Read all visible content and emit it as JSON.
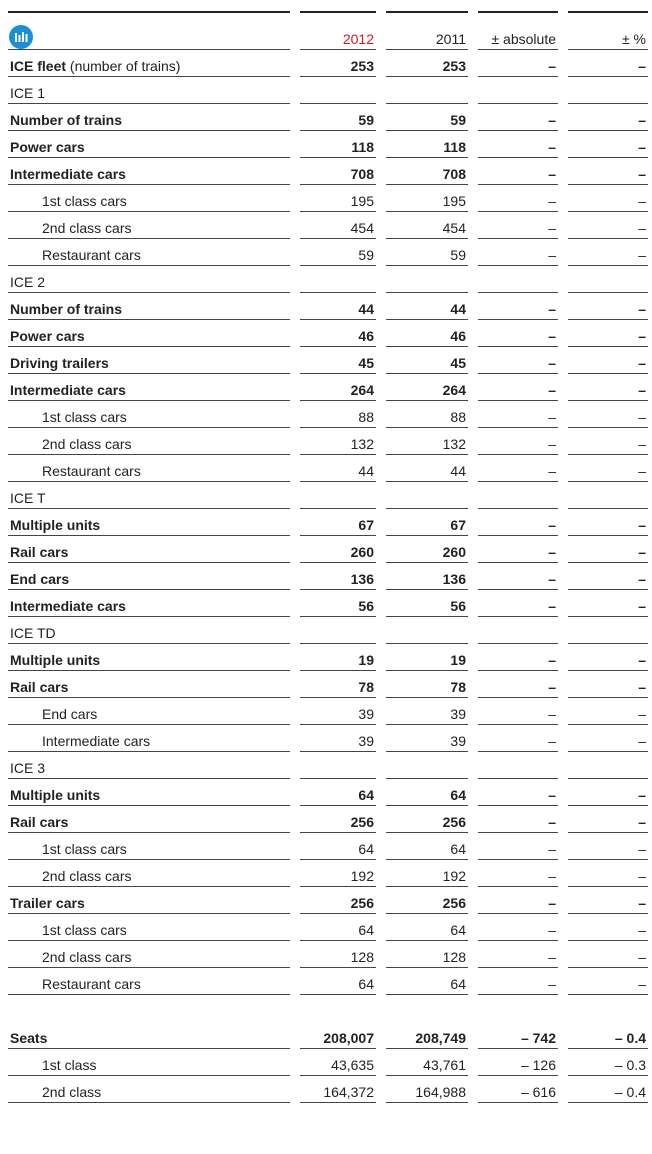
{
  "header": {
    "columns": [
      "2012",
      "2011",
      "± absolute",
      "± %"
    ]
  },
  "table": {
    "groups": [
      {
        "rows": [
          {
            "label": "ICE fleet",
            "note": "(number of trains)",
            "cells": [
              "253",
              "253",
              "–",
              "–"
            ]
          }
        ]
      },
      {
        "title": "ICE 1",
        "rows": [
          {
            "label": "Number of trains",
            "cells": [
              "59",
              "59",
              "–",
              "–"
            ]
          },
          {
            "label": "Power cars",
            "cells": [
              "118",
              "118",
              "–",
              "–"
            ]
          },
          {
            "label": "Intermediate cars",
            "cells": [
              "708",
              "708",
              "–",
              "–"
            ],
            "children": [
              {
                "label": "1st class cars",
                "cells": [
                  "195",
                  "195",
                  "–",
                  "–"
                ]
              },
              {
                "label": "2nd class cars",
                "cells": [
                  "454",
                  "454",
                  "–",
                  "–"
                ]
              },
              {
                "label": "Restaurant cars",
                "cells": [
                  "59",
                  "59",
                  "–",
                  "–"
                ]
              }
            ]
          }
        ]
      },
      {
        "title": "ICE 2",
        "rows": [
          {
            "label": "Number of trains",
            "cells": [
              "44",
              "44",
              "–",
              "–"
            ]
          },
          {
            "label": "Power cars",
            "cells": [
              "46",
              "46",
              "–",
              "–"
            ]
          },
          {
            "label": "Driving trailers",
            "cells": [
              "45",
              "45",
              "–",
              "–"
            ]
          },
          {
            "label": "Intermediate cars",
            "cells": [
              "264",
              "264",
              "–",
              "–"
            ],
            "children": [
              {
                "label": "1st class cars",
                "cells": [
                  "88",
                  "88",
                  "–",
                  "–"
                ]
              },
              {
                "label": "2nd class cars",
                "cells": [
                  "132",
                  "132",
                  "–",
                  "–"
                ]
              },
              {
                "label": "Restaurant cars",
                "cells": [
                  "44",
                  "44",
                  "–",
                  "–"
                ]
              }
            ]
          }
        ]
      },
      {
        "title": "ICE T",
        "rows": [
          {
            "label": "Multiple units",
            "cells": [
              "67",
              "67",
              "–",
              "–"
            ]
          },
          {
            "label": "Rail cars",
            "cells": [
              "260",
              "260",
              "–",
              "–"
            ]
          },
          {
            "label": "End cars",
            "cells": [
              "136",
              "136",
              "–",
              "–"
            ]
          },
          {
            "label": "Intermediate cars",
            "cells": [
              "56",
              "56",
              "–",
              "–"
            ]
          }
        ]
      },
      {
        "title": "ICE TD",
        "rows": [
          {
            "label": "Multiple units",
            "cells": [
              "19",
              "19",
              "–",
              "–"
            ]
          },
          {
            "label": "Rail cars",
            "cells": [
              "78",
              "78",
              "–",
              "–"
            ],
            "children": [
              {
                "label": "End cars",
                "cells": [
                  "39",
                  "39",
                  "–",
                  "–"
                ]
              },
              {
                "label": "Intermediate cars",
                "cells": [
                  "39",
                  "39",
                  "–",
                  "–"
                ]
              }
            ]
          }
        ]
      },
      {
        "title": "ICE 3",
        "rows": [
          {
            "label": "Multiple units",
            "cells": [
              "64",
              "64",
              "–",
              "–"
            ]
          },
          {
            "label": "Rail cars",
            "cells": [
              "256",
              "256",
              "–",
              "–"
            ],
            "children": [
              {
                "label": "1st class cars",
                "cells": [
                  "64",
                  "64",
                  "–",
                  "–"
                ]
              },
              {
                "label": "2nd class cars",
                "cells": [
                  "192",
                  "192",
                  "–",
                  "–"
                ]
              }
            ]
          },
          {
            "label": "Trailer cars",
            "cells": [
              "256",
              "256",
              "–",
              "–"
            ],
            "children": [
              {
                "label": "1st class cars",
                "cells": [
                  "64",
                  "64",
                  "–",
                  "–"
                ]
              },
              {
                "label": "2nd class cars",
                "cells": [
                  "128",
                  "128",
                  "–",
                  "–"
                ]
              },
              {
                "label": "Restaurant cars",
                "cells": [
                  "64",
                  "64",
                  "–",
                  "–"
                ]
              }
            ]
          }
        ]
      },
      {
        "rows": [
          {
            "label": "Seats",
            "cells": [
              "208,007",
              "208,749",
              "– 742",
              "– 0.4"
            ],
            "children": [
              {
                "label": "1st class",
                "cells": [
                  "43,635",
                  "43,761",
                  "– 126",
                  "– 0.3"
                ]
              },
              {
                "label": "2nd class",
                "cells": [
                  "164,372",
                  "164,988",
                  "– 616",
                  "– 0.4"
                ]
              }
            ]
          }
        ]
      }
    ]
  }
}
